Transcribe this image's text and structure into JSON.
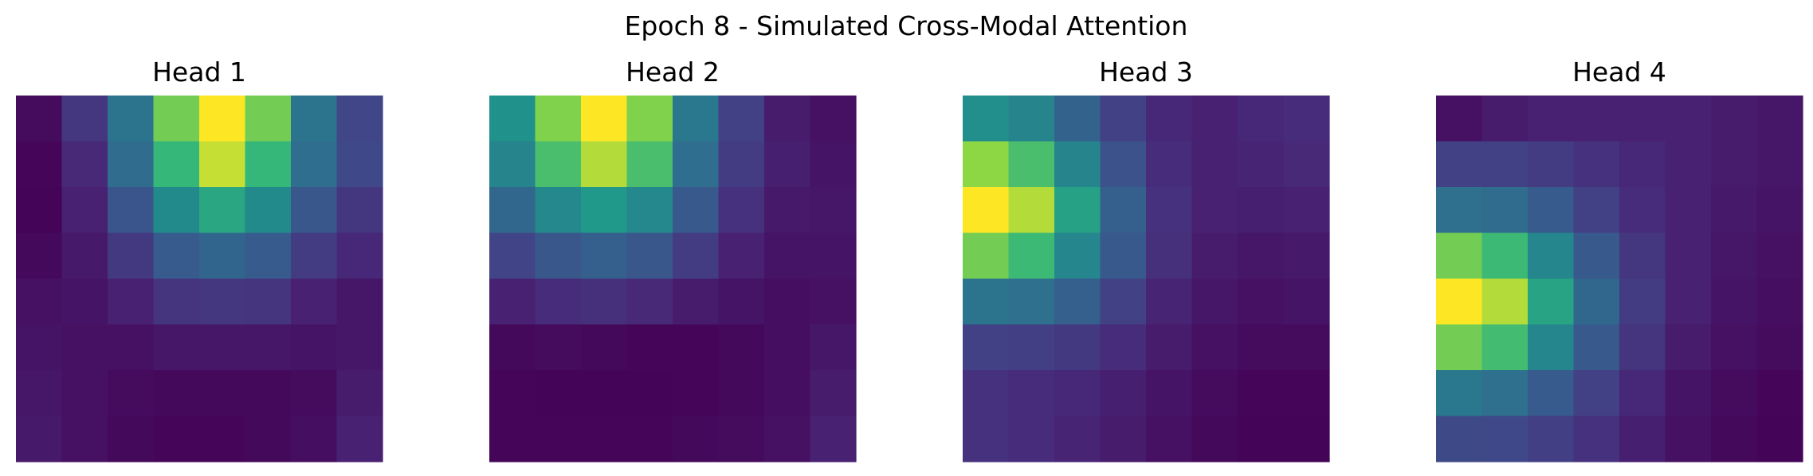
{
  "figure_title": "Epoch 8 - Simulated Cross-Modal Attention",
  "colormap": "viridis",
  "chart_data": [
    {
      "type": "heatmap",
      "title": "Head 1",
      "rows": 8,
      "cols": 8,
      "grid": false,
      "axes": "off",
      "values": [
        [
          0.04,
          0.2,
          0.48,
          0.84,
          1.0,
          0.84,
          0.48,
          0.26
        ],
        [
          0.02,
          0.15,
          0.44,
          0.75,
          0.94,
          0.75,
          0.45,
          0.27
        ],
        [
          0.01,
          0.12,
          0.33,
          0.58,
          0.69,
          0.58,
          0.34,
          0.2
        ],
        [
          0.03,
          0.09,
          0.21,
          0.36,
          0.41,
          0.36,
          0.22,
          0.14
        ],
        [
          0.06,
          0.07,
          0.12,
          0.19,
          0.2,
          0.19,
          0.12,
          0.08
        ],
        [
          0.07,
          0.06,
          0.06,
          0.08,
          0.08,
          0.08,
          0.07,
          0.08
        ],
        [
          0.08,
          0.06,
          0.04,
          0.03,
          0.03,
          0.03,
          0.04,
          0.1
        ],
        [
          0.09,
          0.06,
          0.03,
          0.02,
          0.02,
          0.03,
          0.05,
          0.12
        ]
      ]
    },
    {
      "type": "heatmap",
      "title": "Head 2",
      "rows": 8,
      "cols": 8,
      "grid": false,
      "axes": "off",
      "values": [
        [
          0.61,
          0.86,
          1.0,
          0.86,
          0.5,
          0.24,
          0.1,
          0.06
        ],
        [
          0.55,
          0.78,
          0.92,
          0.78,
          0.45,
          0.22,
          0.11,
          0.07
        ],
        [
          0.42,
          0.57,
          0.64,
          0.57,
          0.35,
          0.18,
          0.09,
          0.08
        ],
        [
          0.25,
          0.34,
          0.38,
          0.34,
          0.22,
          0.12,
          0.07,
          0.07
        ],
        [
          0.12,
          0.16,
          0.17,
          0.15,
          0.1,
          0.07,
          0.05,
          0.06
        ],
        [
          0.03,
          0.04,
          0.03,
          0.02,
          0.02,
          0.03,
          0.05,
          0.08
        ],
        [
          0.02,
          0.01,
          0.01,
          0.01,
          0.02,
          0.03,
          0.05,
          0.1
        ],
        [
          0.02,
          0.02,
          0.02,
          0.02,
          0.03,
          0.04,
          0.06,
          0.12
        ]
      ]
    },
    {
      "type": "heatmap",
      "title": "Head 3",
      "rows": 8,
      "cols": 8,
      "grid": false,
      "axes": "off",
      "values": [
        [
          0.6,
          0.55,
          0.4,
          0.24,
          0.14,
          0.12,
          0.14,
          0.16
        ],
        [
          0.88,
          0.78,
          0.55,
          0.32,
          0.16,
          0.12,
          0.13,
          0.15
        ],
        [
          1.0,
          0.92,
          0.67,
          0.38,
          0.18,
          0.12,
          0.11,
          0.12
        ],
        [
          0.84,
          0.76,
          0.56,
          0.35,
          0.17,
          0.1,
          0.08,
          0.09
        ],
        [
          0.48,
          0.46,
          0.38,
          0.24,
          0.13,
          0.08,
          0.06,
          0.07
        ],
        [
          0.24,
          0.23,
          0.21,
          0.16,
          0.1,
          0.06,
          0.04,
          0.04
        ],
        [
          0.18,
          0.16,
          0.14,
          0.11,
          0.07,
          0.04,
          0.02,
          0.02
        ],
        [
          0.18,
          0.16,
          0.13,
          0.1,
          0.06,
          0.03,
          0.01,
          0.01
        ]
      ]
    },
    {
      "type": "heatmap",
      "title": "Head 4",
      "rows": 8,
      "cols": 8,
      "grid": false,
      "axes": "off",
      "values": [
        [
          0.06,
          0.1,
          0.12,
          0.12,
          0.12,
          0.12,
          0.1,
          0.08
        ],
        [
          0.24,
          0.24,
          0.22,
          0.18,
          0.14,
          0.12,
          0.1,
          0.08
        ],
        [
          0.46,
          0.44,
          0.36,
          0.24,
          0.16,
          0.12,
          0.09,
          0.07
        ],
        [
          0.84,
          0.76,
          0.56,
          0.35,
          0.2,
          0.12,
          0.08,
          0.06
        ],
        [
          1.0,
          0.92,
          0.68,
          0.42,
          0.22,
          0.12,
          0.07,
          0.05
        ],
        [
          0.84,
          0.77,
          0.56,
          0.35,
          0.19,
          0.1,
          0.06,
          0.04
        ],
        [
          0.5,
          0.46,
          0.36,
          0.24,
          0.14,
          0.07,
          0.04,
          0.02
        ],
        [
          0.28,
          0.27,
          0.23,
          0.18,
          0.11,
          0.06,
          0.03,
          0.01
        ]
      ]
    }
  ]
}
